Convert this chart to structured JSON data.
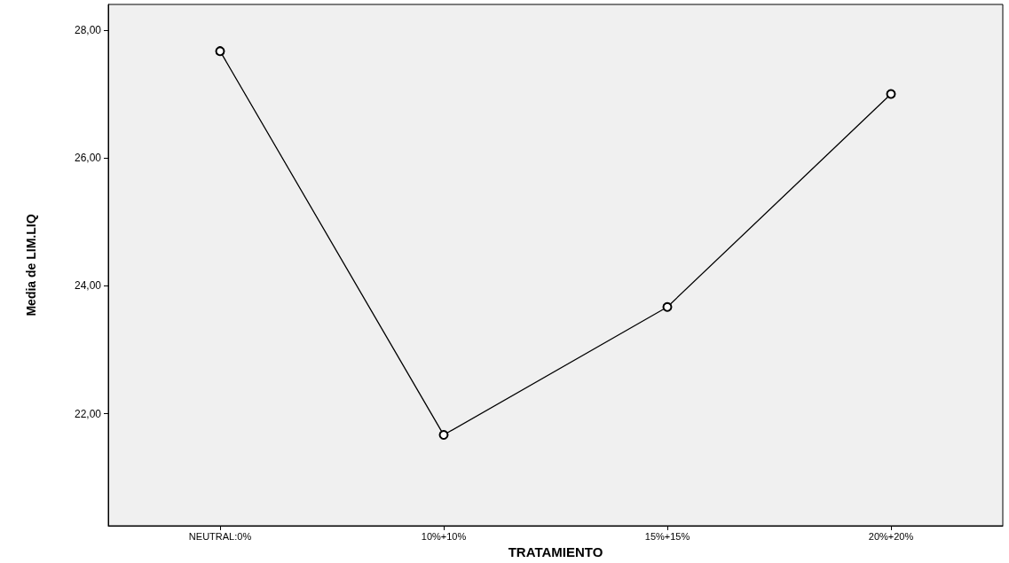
{
  "chart_data": {
    "type": "line",
    "xlabel": "TRATAMIENTO",
    "ylabel": "Media de LIM.LIQ",
    "categories": [
      "NEUTRAL:0%",
      "10%+10%",
      "15%+15%",
      "20%+20%"
    ],
    "series": [
      {
        "color": "#000000",
        "values": [
          27.67,
          21.67,
          23.67,
          27.0
        ]
      }
    ],
    "ylim": [
      20.25,
      28.4
    ],
    "yticks": [
      {
        "value": 22,
        "label": "22,00"
      },
      {
        "value": 24,
        "label": "24,00"
      },
      {
        "value": 26,
        "label": "26,00"
      },
      {
        "value": 28,
        "label": "28,00"
      }
    ],
    "grid": false,
    "marker": "circle",
    "line_style": "solid"
  }
}
